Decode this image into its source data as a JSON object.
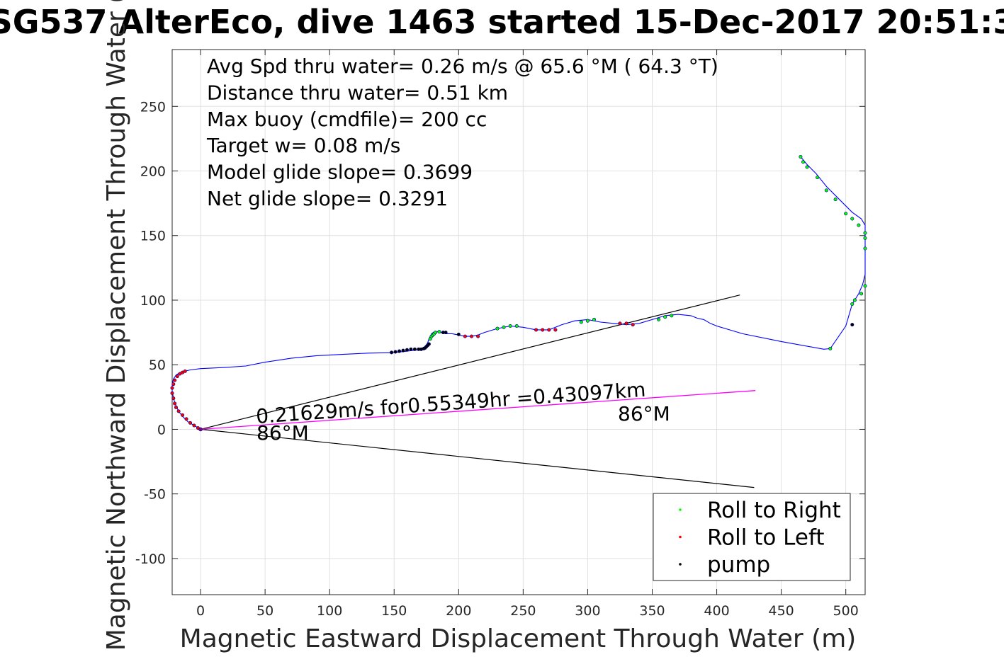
{
  "chart_data": {
    "type": "line",
    "title": "SG537 AlterEco, dive 1463 started 15-Dec-2017 20:51:3",
    "xlabel": "Magnetic Eastward Displacement Through Water (m)",
    "ylabel": "Magnetic Northward Displacement Through Water (",
    "xlim": [
      -22,
      515
    ],
    "ylim": [
      -128,
      294
    ],
    "x_ticks": [
      0,
      50,
      100,
      150,
      200,
      250,
      300,
      350,
      400,
      450,
      500
    ],
    "y_ticks": [
      -100,
      -50,
      0,
      50,
      100,
      150,
      200,
      250
    ],
    "grid": true,
    "legend_position": "bottom-right",
    "info_lines": [
      "Avg Spd thru water=  0.26 m/s @  65.6 °M ( 64.3 °T)",
      "Distance thru water=  0.51 km",
      "Max buoy (cmdfile)= 200 cc",
      "Target w= 0.08 m/s",
      "Model glide slope= 0.3699",
      "Net glide slope= 0.3291"
    ],
    "annotations": {
      "drift_label": "0.21629m/s for0.55349hr =0.43097km",
      "heading_start": "86°M",
      "heading_end": "86°M"
    },
    "colors": {
      "track": "#0000ff",
      "heading_line": "#ff00ff",
      "cone_lines": "#000000",
      "roll_right": "#00ff00",
      "roll_left": "#ff0000",
      "pump": "#000000",
      "marker_edge": "#000080"
    },
    "series": [
      {
        "name": "track",
        "x": [
          0,
          -5,
          -10,
          -14,
          -17,
          -19,
          -21,
          -22,
          -22,
          -21,
          -19,
          -16,
          -12,
          -8,
          0,
          20,
          35,
          50,
          70,
          90,
          110,
          130,
          150,
          160,
          168,
          172,
          174,
          176,
          177,
          178,
          179,
          181,
          185,
          190,
          195,
          200,
          205,
          210,
          215,
          220,
          230,
          240,
          250,
          260,
          270,
          280,
          290,
          300,
          310,
          320,
          330,
          340,
          350,
          360,
          370,
          380,
          385,
          390,
          395,
          400,
          420,
          450,
          483,
          488,
          500,
          505,
          510,
          513,
          515,
          515,
          515,
          515,
          512,
          505,
          495,
          485,
          477,
          470,
          465
        ],
        "y": [
          0,
          3,
          6,
          10,
          14,
          18,
          24,
          30,
          35,
          39,
          42,
          44,
          45,
          46,
          47,
          48,
          49,
          52,
          55,
          57,
          58,
          59,
          59.5,
          60.5,
          61.5,
          62.5,
          64,
          67,
          70,
          72,
          74,
          75.5,
          75.5,
          74,
          74,
          73,
          72,
          72,
          73,
          75,
          78,
          80,
          79,
          77,
          77,
          81,
          84,
          85,
          83,
          82,
          81,
          82,
          85,
          88,
          89,
          88,
          86,
          85,
          82,
          80,
          74,
          68,
          62,
          62.5,
          80,
          97,
          105,
          112,
          120,
          140,
          150,
          158,
          163,
          168,
          178,
          188,
          198,
          205,
          211
        ]
      },
      {
        "name": "heading",
        "x": [
          0,
          430
        ],
        "y": [
          0,
          30
        ]
      },
      {
        "name": "cone_upper",
        "x": [
          0,
          418
        ],
        "y": [
          0,
          104
        ]
      },
      {
        "name": "cone_lower",
        "x": [
          0,
          429
        ],
        "y": [
          0,
          -45
        ]
      },
      {
        "name": "Roll to Right",
        "x": [
          178,
          179,
          180,
          181,
          182,
          185,
          230,
          235,
          240,
          245,
          295,
          300,
          305,
          355,
          360,
          365,
          488,
          505,
          507,
          512,
          515,
          515,
          515,
          515,
          510,
          505,
          500,
          492,
          485,
          478,
          470,
          467,
          465
        ],
        "y": [
          70,
          72,
          73,
          74,
          75,
          75.5,
          78,
          79,
          80,
          80,
          83,
          84,
          85,
          85,
          87,
          88,
          62.5,
          97,
          100,
          105,
          111,
          140,
          148,
          152,
          158,
          163,
          167,
          178,
          185,
          195,
          203,
          207,
          211
        ]
      },
      {
        "name": "Roll to Left",
        "x": [
          -2,
          -5,
          -8,
          -11,
          -14,
          -17,
          -19,
          -20,
          -21,
          -22,
          -22,
          -21,
          -20,
          -18,
          -16,
          -14,
          -12,
          205,
          210,
          215,
          260,
          265,
          270,
          275,
          325,
          330,
          335
        ],
        "y": [
          1,
          3,
          5,
          8,
          11,
          14,
          17,
          20,
          24,
          28,
          32,
          35,
          38,
          41,
          43,
          44,
          45,
          72,
          72,
          72,
          77,
          77,
          77,
          77,
          82,
          82,
          81
        ]
      },
      {
        "name": "pump",
        "x": [
          148,
          151,
          154,
          157,
          160,
          163,
          166,
          169,
          171,
          173,
          174,
          175,
          176,
          177,
          188,
          190,
          200,
          505
        ],
        "y": [
          59.5,
          60,
          60.5,
          61,
          61.5,
          62,
          62,
          62,
          62,
          62.5,
          63,
          64,
          65,
          66,
          75,
          75,
          73.5,
          81
        ]
      }
    ],
    "legend": [
      {
        "label": "Roll to Right",
        "color": "#00ff00"
      },
      {
        "label": "Roll to Left",
        "color": "#ff0000"
      },
      {
        "label": "pump",
        "color": "#000000"
      }
    ]
  }
}
